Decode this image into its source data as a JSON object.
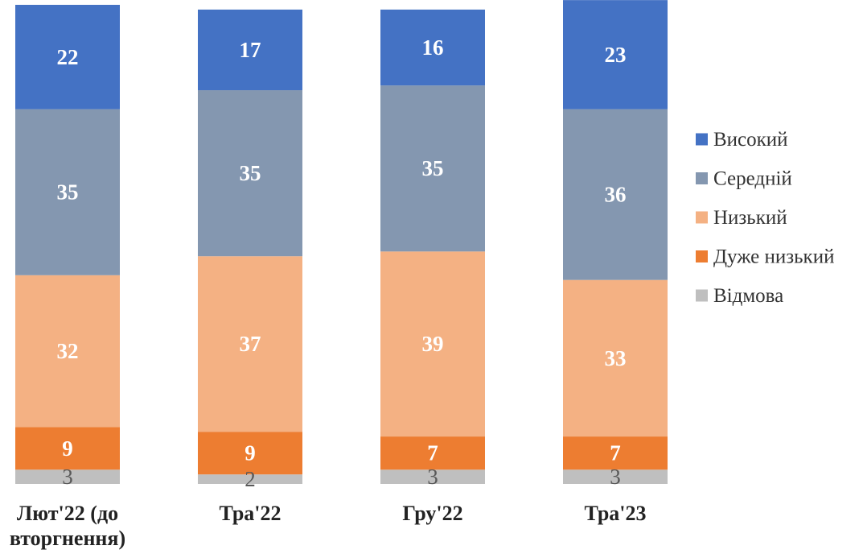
{
  "chart_data": {
    "type": "bar",
    "stacked": true,
    "orientation": "vertical",
    "categories": [
      [
        "Лют'22 (до",
        "вторгнення)"
      ],
      [
        "Тра'22"
      ],
      [
        "Гру'22"
      ],
      [
        "Тра'23"
      ]
    ],
    "series": [
      {
        "name": "Відмова",
        "color": "#BFBFBF",
        "label_color": "#595959",
        "values": [
          3,
          2,
          3,
          3
        ]
      },
      {
        "name": "Дуже низький",
        "color": "#ED7D31",
        "label_color": "#FFFFFF",
        "values": [
          9,
          9,
          7,
          7
        ]
      },
      {
        "name": "Низький",
        "color": "#F4B183",
        "label_color": "#FFFFFF",
        "values": [
          32,
          37,
          39,
          33
        ]
      },
      {
        "name": "Середній",
        "color": "#8497B0",
        "label_color": "#FFFFFF",
        "values": [
          35,
          35,
          35,
          36
        ]
      },
      {
        "name": "Високий",
        "color": "#4472C4",
        "label_color": "#FFFFFF",
        "values": [
          22,
          17,
          16,
          23
        ]
      }
    ],
    "legend_order": [
      "Високий",
      "Середній",
      "Низький",
      "Дуже низький",
      "Відмова"
    ],
    "legend_position": "right",
    "ylim": [
      0,
      101
    ],
    "grid": false,
    "data_labels": true
  }
}
